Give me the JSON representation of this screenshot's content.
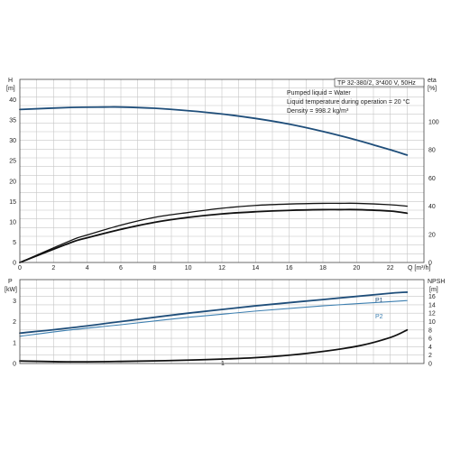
{
  "colors": {
    "blue": "#1f4e7a",
    "light_blue": "#3d7fb0",
    "black": "#111111",
    "grid": "#c6c6c6"
  },
  "info_box": {
    "model": "TP 32-380/2, 3*400 V, 50Hz",
    "line1": "Pumped liquid = Water",
    "line2": "Liquid temperature during operation = 20 °C",
    "line3": "Density = 998.2 kg/m³"
  },
  "chart_data": [
    {
      "type": "line",
      "title": "",
      "xlabel": "Q [m³/h]",
      "ylabel_left_top": "H",
      "ylabel_left_bottom": "[m]",
      "ylabel_right_top": "eta",
      "ylabel_right_bottom": "[%]",
      "xlim": [
        0,
        24
      ],
      "ylim_left": [
        0,
        45
      ],
      "ylim_right": [
        0,
        130
      ],
      "x_ticks": [
        "0",
        "2",
        "4",
        "6",
        "8",
        "10",
        "12",
        "14",
        "16",
        "18",
        "20",
        "22"
      ],
      "y_left_ticks": [
        "0",
        "5",
        "10",
        "15",
        "20",
        "25",
        "30",
        "35",
        "40"
      ],
      "y_right_ticks": [
        "0",
        "20",
        "40",
        "60",
        "80",
        "100"
      ],
      "grid": true,
      "series": [
        {
          "axis": "left",
          "color": "blue",
          "width": 1.8,
          "x": [
            0,
            3,
            5,
            6,
            8,
            10,
            12,
            14,
            16,
            18,
            20,
            21,
            22,
            23
          ],
          "y": [
            37.6,
            38.1,
            38.2,
            38.2,
            37.9,
            37.3,
            36.5,
            35.4,
            34.0,
            32.2,
            30.1,
            28.9,
            27.7,
            26.4
          ]
        },
        {
          "axis": "right",
          "color": "black",
          "width": 1.3,
          "x": [
            0,
            3,
            4,
            6,
            8,
            10,
            12,
            14,
            16,
            18,
            19,
            20,
            22,
            23
          ],
          "y": [
            0,
            15.5,
            19.5,
            26.5,
            32,
            35.5,
            38.5,
            40.5,
            41.5,
            42,
            42,
            42,
            41,
            40
          ]
        },
        {
          "axis": "right",
          "color": "black",
          "width": 1.8,
          "x": [
            0,
            3,
            4,
            6,
            8,
            10,
            12,
            14,
            16,
            18,
            19,
            20,
            22,
            23
          ],
          "y": [
            0,
            14,
            17.5,
            23.5,
            28.5,
            32,
            34.5,
            36,
            37,
            37.5,
            37.5,
            37.5,
            36.5,
            35
          ]
        }
      ]
    },
    {
      "type": "line",
      "title": "",
      "xlabel": "",
      "ylabel_left_top": "P",
      "ylabel_left_bottom": "[kW]",
      "ylabel_right_top": "NPSH",
      "ylabel_right_bottom": "[m]",
      "xlim": [
        0,
        24
      ],
      "ylim_left": [
        0,
        4
      ],
      "ylim_right": [
        0,
        20
      ],
      "y_left_ticks": [
        "0",
        "1",
        "2",
        "3"
      ],
      "y_right_ticks": [
        "0",
        "2",
        "4",
        "6",
        "8",
        "10",
        "12",
        "14",
        "16"
      ],
      "grid": true,
      "marker_label": "1",
      "series": [
        {
          "name": "P1",
          "axis": "left",
          "color": "blue",
          "width": 1.8,
          "x": [
            0,
            3,
            6,
            10,
            14,
            18,
            22,
            23
          ],
          "y": [
            1.45,
            1.7,
            2.0,
            2.4,
            2.75,
            3.05,
            3.35,
            3.4
          ]
        },
        {
          "name": "P2",
          "axis": "left",
          "color": "light_blue",
          "width": 1.1,
          "x": [
            0,
            3,
            6,
            10,
            14,
            18,
            22,
            23
          ],
          "y": [
            1.3,
            1.6,
            1.85,
            2.2,
            2.5,
            2.75,
            2.95,
            3.0
          ]
        },
        {
          "axis": "right",
          "color": "black",
          "width": 1.8,
          "x": [
            0,
            3,
            6,
            10,
            14,
            17,
            20,
            22,
            23
          ],
          "y": [
            0.6,
            0.4,
            0.5,
            0.8,
            1.4,
            2.4,
            4.1,
            6.2,
            8.0
          ]
        }
      ]
    }
  ]
}
